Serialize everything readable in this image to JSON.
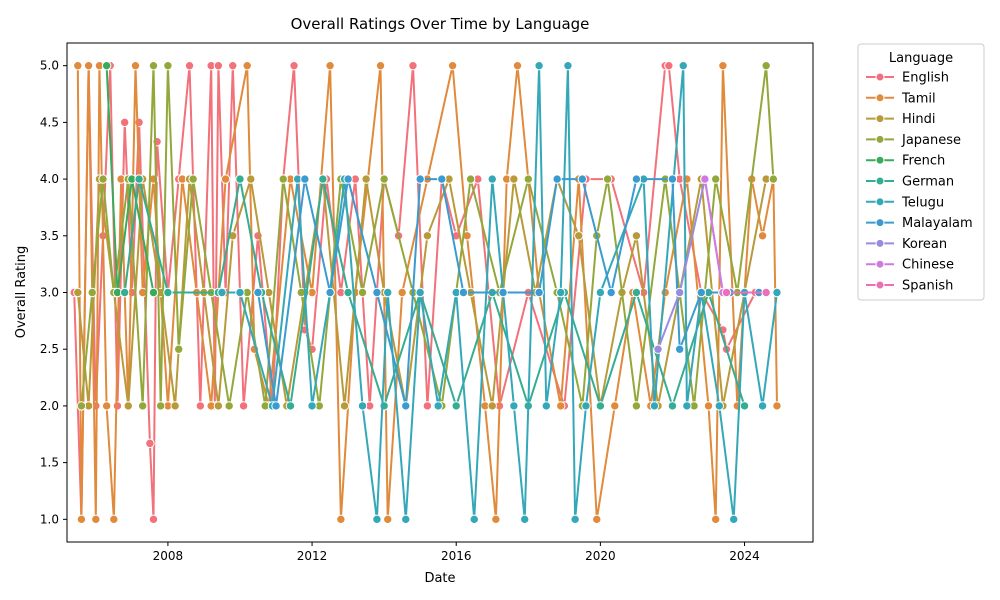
{
  "chart_data": {
    "type": "line",
    "title": "Overall Ratings Over Time by Language",
    "xlabel": "Date",
    "ylabel": "Overall Rating",
    "xlim": [
      2005.2,
      2025.9
    ],
    "ylim": [
      0.8,
      5.2
    ],
    "xticks": [
      2008,
      2012,
      2016,
      2020,
      2024
    ],
    "yticks": [
      1.0,
      1.5,
      2.0,
      2.5,
      3.0,
      3.5,
      4.0,
      4.5,
      5.0
    ],
    "grid": false,
    "legend": {
      "title": "Language",
      "placement": "outside-right"
    },
    "series": [
      {
        "name": "English",
        "color": "#f2717a",
        "values": [
          [
            2005.4,
            3.0
          ],
          [
            2005.6,
            1.0
          ],
          [
            2005.8,
            5.0
          ],
          [
            2006.0,
            2.0
          ],
          [
            2006.2,
            3.5
          ],
          [
            2006.4,
            5.0
          ],
          [
            2006.6,
            2.0
          ],
          [
            2006.8,
            4.5
          ],
          [
            2007.0,
            3.0
          ],
          [
            2007.2,
            4.5
          ],
          [
            2007.5,
            1.67
          ],
          [
            2007.6,
            1.0
          ],
          [
            2007.7,
            4.33
          ],
          [
            2008.0,
            3.0
          ],
          [
            2008.3,
            4.0
          ],
          [
            2008.6,
            5.0
          ],
          [
            2008.9,
            2.0
          ],
          [
            2009.2,
            5.0
          ],
          [
            2009.3,
            2.0
          ],
          [
            2009.4,
            5.0
          ],
          [
            2009.6,
            3.0
          ],
          [
            2009.8,
            5.0
          ],
          [
            2010.1,
            2.0
          ],
          [
            2010.5,
            3.5
          ],
          [
            2010.9,
            2.0
          ],
          [
            2011.2,
            4.0
          ],
          [
            2011.5,
            5.0
          ],
          [
            2011.8,
            2.67
          ],
          [
            2012.0,
            2.5
          ],
          [
            2012.4,
            4.0
          ],
          [
            2012.8,
            3.0
          ],
          [
            2013.2,
            4.0
          ],
          [
            2013.6,
            2.0
          ],
          [
            2014.0,
            4.0
          ],
          [
            2014.4,
            3.5
          ],
          [
            2014.8,
            5.0
          ],
          [
            2015.2,
            2.0
          ],
          [
            2015.6,
            4.0
          ],
          [
            2016.0,
            3.5
          ],
          [
            2016.6,
            4.0
          ],
          [
            2017.2,
            2.0
          ],
          [
            2018.0,
            3.0
          ],
          [
            2019.0,
            2.0
          ],
          [
            2019.6,
            4.0
          ],
          [
            2020.3,
            4.0
          ],
          [
            2021.2,
            3.0
          ],
          [
            2021.8,
            5.0
          ],
          [
            2021.9,
            5.0
          ],
          [
            2022.2,
            4.0
          ],
          [
            2022.8,
            3.0
          ],
          [
            2023.4,
            2.67
          ],
          [
            2023.5,
            2.5
          ],
          [
            2024.3,
            3.0
          ]
        ]
      },
      {
        "name": "Tamil",
        "color": "#e08a3c",
        "values": [
          [
            2005.5,
            5.0
          ],
          [
            2005.6,
            1.0
          ],
          [
            2005.8,
            5.0
          ],
          [
            2006.0,
            1.0
          ],
          [
            2006.1,
            5.0
          ],
          [
            2006.3,
            2.0
          ],
          [
            2006.5,
            1.0
          ],
          [
            2006.7,
            4.0
          ],
          [
            2006.9,
            2.0
          ],
          [
            2007.1,
            5.0
          ],
          [
            2007.3,
            3.0
          ],
          [
            2007.6,
            4.0
          ],
          [
            2008.0,
            2.0
          ],
          [
            2008.4,
            4.0
          ],
          [
            2008.8,
            3.0
          ],
          [
            2009.2,
            2.0
          ],
          [
            2009.6,
            4.0
          ],
          [
            2010.2,
            5.0
          ],
          [
            2010.4,
            2.5
          ],
          [
            2010.8,
            2.0
          ],
          [
            2011.4,
            4.0
          ],
          [
            2012.0,
            3.0
          ],
          [
            2012.5,
            5.0
          ],
          [
            2012.8,
            1.0
          ],
          [
            2013.2,
            3.0
          ],
          [
            2013.9,
            5.0
          ],
          [
            2014.1,
            1.0
          ],
          [
            2014.5,
            3.0
          ],
          [
            2015.2,
            4.0
          ],
          [
            2015.9,
            5.0
          ],
          [
            2016.3,
            3.5
          ],
          [
            2016.8,
            2.0
          ],
          [
            2017.1,
            1.0
          ],
          [
            2017.4,
            4.0
          ],
          [
            2017.7,
            5.0
          ],
          [
            2018.3,
            3.0
          ],
          [
            2018.9,
            2.0
          ],
          [
            2019.4,
            4.0
          ],
          [
            2019.9,
            1.0
          ],
          [
            2020.4,
            2.0
          ],
          [
            2020.9,
            3.0
          ],
          [
            2021.4,
            2.0
          ],
          [
            2021.8,
            3.0
          ],
          [
            2022.4,
            4.0
          ],
          [
            2023.0,
            2.0
          ],
          [
            2023.2,
            1.0
          ],
          [
            2023.4,
            5.0
          ],
          [
            2023.8,
            2.0
          ],
          [
            2024.2,
            4.0
          ],
          [
            2024.5,
            3.5
          ],
          [
            2024.8,
            4.0
          ],
          [
            2024.9,
            2.0
          ]
        ]
      },
      {
        "name": "Hindi",
        "color": "#b89a3a",
        "values": [
          [
            2005.5,
            3.0
          ],
          [
            2005.8,
            2.0
          ],
          [
            2006.1,
            4.0
          ],
          [
            2006.5,
            3.0
          ],
          [
            2006.9,
            2.0
          ],
          [
            2007.3,
            4.0
          ],
          [
            2007.8,
            3.0
          ],
          [
            2008.2,
            2.0
          ],
          [
            2008.6,
            4.0
          ],
          [
            2009.0,
            3.0
          ],
          [
            2009.4,
            2.0
          ],
          [
            2009.8,
            3.5
          ],
          [
            2010.3,
            4.0
          ],
          [
            2010.8,
            3.0
          ],
          [
            2011.3,
            2.0
          ],
          [
            2011.8,
            3.0
          ],
          [
            2012.3,
            4.0
          ],
          [
            2012.9,
            2.0
          ],
          [
            2013.5,
            4.0
          ],
          [
            2014.0,
            3.0
          ],
          [
            2014.6,
            2.0
          ],
          [
            2015.2,
            3.5
          ],
          [
            2015.8,
            4.0
          ],
          [
            2016.4,
            3.0
          ],
          [
            2017.0,
            2.0
          ],
          [
            2017.6,
            4.0
          ],
          [
            2018.2,
            3.0
          ],
          [
            2018.8,
            4.0
          ],
          [
            2019.4,
            3.5
          ],
          [
            2020.0,
            2.0
          ],
          [
            2020.6,
            3.0
          ],
          [
            2021.0,
            3.5
          ],
          [
            2021.6,
            2.0
          ],
          [
            2022.2,
            3.0
          ],
          [
            2022.8,
            4.0
          ],
          [
            2023.4,
            2.0
          ],
          [
            2024.0,
            3.0
          ],
          [
            2024.6,
            4.0
          ]
        ]
      },
      {
        "name": "Japanese",
        "color": "#93a83a",
        "values": [
          [
            2005.6,
            2.0
          ],
          [
            2005.9,
            3.0
          ],
          [
            2006.2,
            4.0
          ],
          [
            2006.5,
            3.0
          ],
          [
            2006.9,
            4.0
          ],
          [
            2007.3,
            2.0
          ],
          [
            2007.6,
            5.0
          ],
          [
            2007.8,
            2.0
          ],
          [
            2008.0,
            5.0
          ],
          [
            2008.3,
            2.5
          ],
          [
            2008.7,
            4.0
          ],
          [
            2009.2,
            3.0
          ],
          [
            2009.7,
            2.0
          ],
          [
            2010.2,
            3.0
          ],
          [
            2010.7,
            2.0
          ],
          [
            2011.2,
            4.0
          ],
          [
            2011.7,
            3.0
          ],
          [
            2012.2,
            2.0
          ],
          [
            2012.8,
            4.0
          ],
          [
            2013.4,
            3.0
          ],
          [
            2014.0,
            4.0
          ],
          [
            2014.8,
            3.0
          ],
          [
            2015.6,
            2.0
          ],
          [
            2016.4,
            4.0
          ],
          [
            2017.2,
            3.0
          ],
          [
            2018.0,
            4.0
          ],
          [
            2018.8,
            3.0
          ],
          [
            2019.5,
            2.0
          ],
          [
            2019.9,
            3.5
          ],
          [
            2020.2,
            4.0
          ],
          [
            2021.0,
            2.0
          ],
          [
            2021.8,
            4.0
          ],
          [
            2022.6,
            2.0
          ],
          [
            2023.2,
            4.0
          ],
          [
            2023.8,
            3.0
          ],
          [
            2024.6,
            5.0
          ],
          [
            2024.8,
            4.0
          ]
        ]
      },
      {
        "name": "French",
        "color": "#3aab5a",
        "values": [
          [
            2006.3,
            5.0
          ],
          [
            2006.6,
            3.0
          ],
          [
            2007.0,
            4.0
          ],
          [
            2007.6,
            3.0
          ]
        ]
      },
      {
        "name": "German",
        "color": "#35ad93",
        "values": [
          [
            2006.8,
            3.0
          ],
          [
            2007.2,
            4.0
          ],
          [
            2008.0,
            3.0
          ],
          [
            2009.4,
            3.0
          ],
          [
            2010.0,
            4.0
          ],
          [
            2010.6,
            3.0
          ],
          [
            2011.4,
            2.0
          ],
          [
            2012.3,
            4.0
          ],
          [
            2013.0,
            3.0
          ],
          [
            2014.0,
            2.0
          ],
          [
            2015.0,
            3.0
          ],
          [
            2016.0,
            2.0
          ],
          [
            2017.0,
            3.0
          ],
          [
            2018.0,
            2.0
          ],
          [
            2019.0,
            3.0
          ],
          [
            2020.0,
            2.0
          ],
          [
            2021.0,
            3.0
          ],
          [
            2022.0,
            2.0
          ],
          [
            2023.0,
            3.0
          ],
          [
            2024.0,
            2.0
          ]
        ]
      },
      {
        "name": "Telugu",
        "color": "#34a8b8",
        "values": [
          [
            2009.5,
            3.0
          ],
          [
            2010.0,
            3.0
          ],
          [
            2010.9,
            2.0
          ],
          [
            2011.6,
            4.0
          ],
          [
            2012.0,
            2.0
          ],
          [
            2012.5,
            3.0
          ],
          [
            2012.9,
            4.0
          ],
          [
            2013.4,
            2.0
          ],
          [
            2013.8,
            1.0
          ],
          [
            2014.1,
            3.0
          ],
          [
            2014.6,
            1.0
          ],
          [
            2015.0,
            3.0
          ],
          [
            2015.5,
            2.0
          ],
          [
            2016.0,
            3.0
          ],
          [
            2016.5,
            1.0
          ],
          [
            2017.0,
            4.0
          ],
          [
            2017.6,
            2.0
          ],
          [
            2017.9,
            1.0
          ],
          [
            2018.3,
            5.0
          ],
          [
            2018.5,
            2.0
          ],
          [
            2018.9,
            3.0
          ],
          [
            2019.1,
            5.0
          ],
          [
            2019.3,
            1.0
          ],
          [
            2019.6,
            2.0
          ],
          [
            2020.0,
            3.0
          ],
          [
            2021.2,
            4.0
          ],
          [
            2021.5,
            2.0
          ],
          [
            2022.3,
            5.0
          ],
          [
            2022.4,
            2.0
          ],
          [
            2022.8,
            3.0
          ],
          [
            2023.3,
            2.0
          ],
          [
            2023.7,
            1.0
          ],
          [
            2024.0,
            3.0
          ],
          [
            2024.5,
            2.0
          ],
          [
            2024.9,
            3.0
          ]
        ]
      },
      {
        "name": "Malayalam",
        "color": "#3a9bd0",
        "values": [
          [
            2010.5,
            3.0
          ],
          [
            2011.0,
            2.0
          ],
          [
            2011.8,
            4.0
          ],
          [
            2012.5,
            3.0
          ],
          [
            2013.0,
            4.0
          ],
          [
            2013.8,
            3.0
          ],
          [
            2014.6,
            2.0
          ],
          [
            2015.0,
            4.0
          ],
          [
            2015.6,
            4.0
          ],
          [
            2016.2,
            3.0
          ],
          [
            2017.3,
            3.0
          ],
          [
            2018.3,
            3.0
          ],
          [
            2018.8,
            4.0
          ],
          [
            2019.5,
            4.0
          ],
          [
            2020.3,
            3.0
          ],
          [
            2021.0,
            4.0
          ],
          [
            2022.0,
            4.0
          ],
          [
            2022.2,
            2.5
          ],
          [
            2022.8,
            3.0
          ],
          [
            2023.6,
            3.0
          ],
          [
            2024.4,
            3.0
          ]
        ]
      },
      {
        "name": "Korean",
        "color": "#9a8be0",
        "values": [
          [
            2021.6,
            2.5
          ],
          [
            2022.2,
            3.0
          ],
          [
            2022.9,
            4.0
          ],
          [
            2023.4,
            3.0
          ]
        ]
      },
      {
        "name": "Chinese",
        "color": "#d07ae0",
        "values": [
          [
            2022.9,
            4.0
          ],
          [
            2023.4,
            3.0
          ]
        ]
      },
      {
        "name": "Spanish",
        "color": "#ec6fbb",
        "values": [
          [
            2023.5,
            3.0
          ],
          [
            2024.6,
            3.0
          ]
        ]
      }
    ]
  }
}
